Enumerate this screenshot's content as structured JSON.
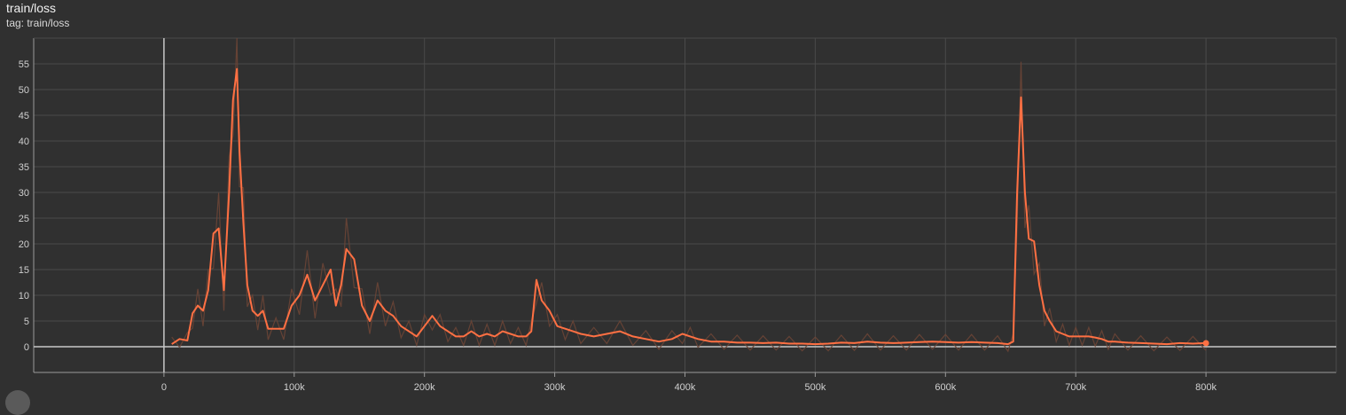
{
  "card": {
    "title": "train/loss",
    "tag": "tag: train/loss"
  },
  "colors": {
    "background": "#303030",
    "grid": "#4a4a4a",
    "axis": "#9a9a9a",
    "series": "#ff7043",
    "raw_series": "#6b4536"
  },
  "chart_data": {
    "type": "line",
    "title": "train/loss",
    "xlabel": "",
    "ylabel": "",
    "xlim": [
      -100000,
      900000
    ],
    "ylim": [
      -5,
      60
    ],
    "grid": true,
    "x_ticks": [
      0,
      100000,
      200000,
      300000,
      400000,
      500000,
      600000,
      700000,
      800000
    ],
    "x_tick_labels": [
      "0",
      "100k",
      "200k",
      "300k",
      "400k",
      "500k",
      "600k",
      "700k",
      "800k"
    ],
    "y_ticks": [
      0,
      5,
      10,
      15,
      20,
      25,
      30,
      35,
      40,
      45,
      50,
      55
    ],
    "y_tick_labels": [
      "0",
      "5",
      "10",
      "15",
      "20",
      "25",
      "30",
      "35",
      "40",
      "45",
      "50",
      "55"
    ],
    "series": [
      {
        "role": "smoothed",
        "x": [
          6000,
          12000,
          18000,
          22000,
          26000,
          30000,
          34000,
          38000,
          42000,
          46000,
          50000,
          53000,
          56000,
          58000,
          61000,
          64000,
          68000,
          72000,
          76000,
          80000,
          86000,
          92000,
          98000,
          104000,
          110000,
          116000,
          122000,
          128000,
          132000,
          136000,
          140000,
          146000,
          152000,
          158000,
          164000,
          170000,
          176000,
          182000,
          188000,
          194000,
          200000,
          206000,
          212000,
          218000,
          224000,
          230000,
          236000,
          242000,
          248000,
          254000,
          260000,
          266000,
          272000,
          278000,
          282000,
          286000,
          290000,
          296000,
          302000,
          308000,
          314000,
          320000,
          330000,
          340000,
          350000,
          360000,
          370000,
          380000,
          390000,
          398000,
          404000,
          410000,
          420000,
          430000,
          440000,
          450000,
          460000,
          470000,
          480000,
          490000,
          500000,
          510000,
          520000,
          530000,
          540000,
          550000,
          560000,
          570000,
          580000,
          590000,
          600000,
          610000,
          620000,
          630000,
          640000,
          648000,
          652000,
          655000,
          658000,
          661000,
          664000,
          668000,
          672000,
          676000,
          680000,
          685000,
          690000,
          695000,
          700000,
          705000,
          710000,
          715000,
          720000,
          725000,
          730000,
          740000,
          750000,
          760000,
          770000,
          780000,
          790000,
          800000
        ],
        "y": [
          0.5,
          1.5,
          1.2,
          6.5,
          8,
          7,
          11,
          22,
          23,
          11,
          30,
          48,
          54,
          38,
          24,
          12,
          7,
          6,
          7,
          3.5,
          3.5,
          3.5,
          8,
          10,
          14,
          9,
          12,
          15,
          8,
          12,
          19,
          17,
          8,
          5,
          9,
          7,
          6,
          4,
          3,
          2,
          4,
          6,
          4,
          3,
          2,
          2,
          3,
          2,
          2.5,
          2,
          3,
          2.5,
          2,
          2,
          3,
          13,
          9,
          7,
          4,
          3.5,
          3,
          2.5,
          2,
          2.5,
          3,
          2,
          1.5,
          1,
          1.5,
          2.5,
          2,
          1.5,
          1,
          1,
          0.8,
          0.8,
          0.7,
          0.8,
          0.6,
          0.6,
          0.5,
          0.6,
          0.8,
          0.7,
          1,
          0.8,
          0.7,
          0.8,
          0.9,
          1,
          0.9,
          0.8,
          0.9,
          0.8,
          0.7,
          0.5,
          1,
          30,
          48.5,
          30,
          21,
          20.5,
          12,
          7,
          5,
          3,
          2.5,
          2,
          2,
          2,
          2,
          1.8,
          1.5,
          1,
          1,
          0.8,
          0.7,
          0.6,
          0.5,
          0.7,
          0.6,
          0.7
        ]
      }
    ]
  }
}
